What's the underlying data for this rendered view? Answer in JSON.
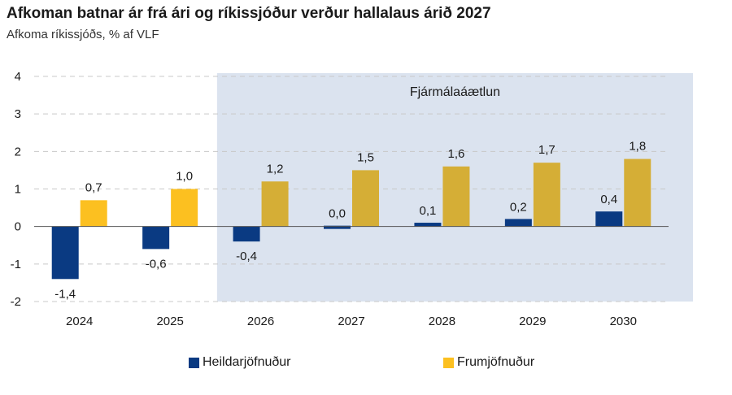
{
  "title": "Afkoman batnar ár frá ári og ríkissjóður verður hallalaus árið 2027",
  "subtitle": "Afkoma ríkissjóðs, % af VLF",
  "colors": {
    "heildar": "#0a3a82",
    "frum_actual": "#fcc020",
    "frum_plan": "#d5ae36",
    "plan_band": "#dbe3ef",
    "grid": "#c8c8c8",
    "axis": "#555555"
  },
  "chart_data": {
    "type": "bar",
    "categories": [
      "2024",
      "2025",
      "2026",
      "2027",
      "2028",
      "2029",
      "2030"
    ],
    "series": [
      {
        "name": "Heildarjöfnuður",
        "values": [
          -1.4,
          -0.6,
          -0.4,
          0.0,
          0.1,
          0.2,
          0.4
        ],
        "labels": [
          "-1,4",
          "-0,6",
          "-0,4",
          "0,0",
          "0,1",
          "0,2",
          "0,4"
        ]
      },
      {
        "name": "Frumjöfnuður",
        "values": [
          0.7,
          1.0,
          1.2,
          1.5,
          1.6,
          1.7,
          1.8
        ],
        "labels": [
          "0,7",
          "1,0",
          "1,2",
          "1,5",
          "1,6",
          "1,7",
          "1,8"
        ]
      }
    ],
    "ylim": [
      -2,
      4
    ],
    "yticks": [
      4,
      3,
      2,
      1,
      0,
      -1,
      -2
    ],
    "ytick_labels": [
      "4",
      "3",
      "2",
      "1",
      "0",
      "-1",
      "-2"
    ],
    "grid": true,
    "shaded_region": {
      "label": "Fjármálaáætlun",
      "start": "2026",
      "end": "2030"
    },
    "legend": {
      "position": "bottom"
    }
  }
}
